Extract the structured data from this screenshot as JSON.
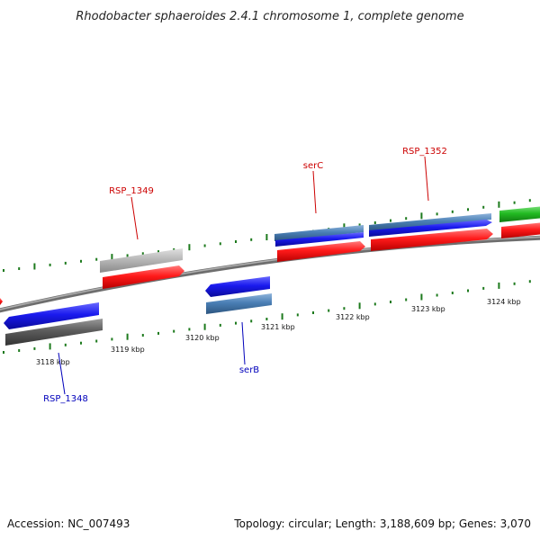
{
  "title": "Rhodobacter sphaeroides 2.4.1 chromosome 1, complete genome",
  "footer": {
    "accession": "Accession: NC_007493",
    "summary": "Topology: circular; Length: 3,188,609 bp; Genes: 3,070"
  },
  "colors": {
    "gene_red": "#ff1a1a",
    "gene_blue": "#1a1aee",
    "gene_steel": "#4a7fb5",
    "gene_gray": "#5c5c5c",
    "gene_lightgray": "#b8b8b8",
    "gene_green": "#22bb22",
    "label_red": "#cc0000",
    "label_blue": "#0000bb",
    "tick_green": "#1d7a1d",
    "backbone": "#8a8a8a"
  },
  "scale_labels": [
    "3118 kbp",
    "3119 kbp",
    "3120 kbp",
    "3121 kbp",
    "3122 kbp",
    "3123 kbp",
    "3124 kbp"
  ],
  "gene_labels": [
    {
      "text": "RSP_1349",
      "strand": "forward"
    },
    {
      "text": "serC",
      "strand": "forward"
    },
    {
      "text": "RSP_1352",
      "strand": "forward"
    },
    {
      "text": "serB",
      "strand": "reverse"
    },
    {
      "text": "RSP_1348",
      "strand": "reverse"
    }
  ]
}
